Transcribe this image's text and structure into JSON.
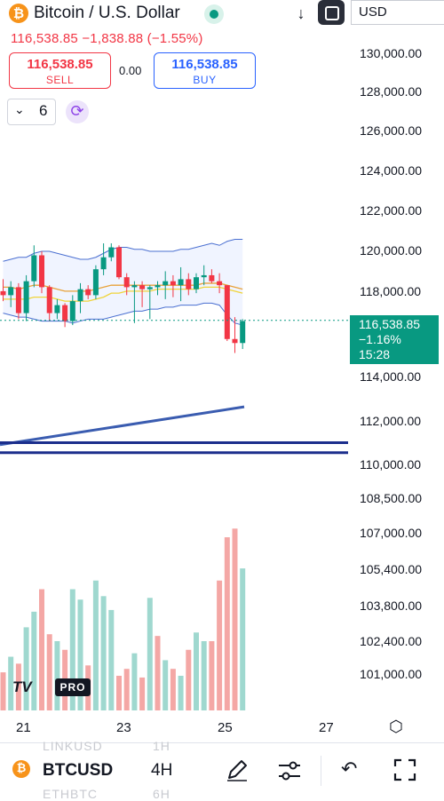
{
  "header": {
    "coin_glyph": "₿",
    "title": "Bitcoin / U.S. Dollar",
    "currency": "USD",
    "price_change_line": "116,538.85 −1,838.88 (−1.55%)"
  },
  "trade": {
    "sell_price": "116,538.85",
    "sell_label": "SELL",
    "spread": "0.00",
    "buy_price": "116,538.85",
    "buy_label": "BUY"
  },
  "indicators": {
    "chevron": "⌄",
    "count": "6"
  },
  "price_axis": {
    "ticks": [
      "130,000.00",
      "128,000.00",
      "126,000.00",
      "124,000.00",
      "122,000.00",
      "120,000.00",
      "118,000.00",
      "114,000.00",
      "112,000.00",
      "110,000.00",
      "108,500.00",
      "107,000.00",
      "105,400.00",
      "103,800.00",
      "102,400.00",
      "101,000.00"
    ]
  },
  "last_price_tag": {
    "price": "116,538.85",
    "change": "−1.16%",
    "countdown": "15:28"
  },
  "time_axis": {
    "ticks": [
      "21",
      "23",
      "25",
      "27"
    ]
  },
  "logo": {
    "tv": "TV",
    "pro": "PRO"
  },
  "bottom_bar": {
    "symbol": "BTCUSD",
    "timeframe": "4H",
    "ghost_symbol_above": "LINKUSD",
    "ghost_tf_above": "1H",
    "ghost_symbol_below": "ETHBTC",
    "ghost_tf_below": "6H"
  },
  "icons": {
    "down": "↓",
    "undo": "↶",
    "settings": "⬡"
  },
  "colors": {
    "up": "#089981",
    "down": "#f23645",
    "up_volume": "#9fd8cf",
    "down_volume": "#f4a7a5",
    "trendline": "#3a5cb0",
    "horizontal_lines": "#1b2e8c",
    "bollinger": "#2962ff"
  },
  "chart_data": {
    "type": "candlestick",
    "candles": [
      {
        "o": 118000,
        "h": 118600,
        "l": 117500,
        "c": 117800
      },
      {
        "o": 117800,
        "h": 118500,
        "l": 117200,
        "c": 118200
      },
      {
        "o": 118200,
        "h": 118400,
        "l": 116600,
        "c": 116900
      },
      {
        "o": 116900,
        "h": 118800,
        "l": 116500,
        "c": 118500
      },
      {
        "o": 118500,
        "h": 120300,
        "l": 118200,
        "c": 119800
      },
      {
        "o": 119800,
        "h": 120000,
        "l": 117900,
        "c": 118200
      },
      {
        "o": 118200,
        "h": 118300,
        "l": 116500,
        "c": 116900
      },
      {
        "o": 116900,
        "h": 117600,
        "l": 116600,
        "c": 117300
      },
      {
        "o": 117300,
        "h": 117400,
        "l": 116200,
        "c": 116500
      },
      {
        "o": 116500,
        "h": 117800,
        "l": 116300,
        "c": 117500
      },
      {
        "o": 117500,
        "h": 118400,
        "l": 116900,
        "c": 118100
      },
      {
        "o": 118100,
        "h": 118300,
        "l": 117600,
        "c": 117800
      },
      {
        "o": 117800,
        "h": 119300,
        "l": 117600,
        "c": 119100
      },
      {
        "o": 119100,
        "h": 120400,
        "l": 118800,
        "c": 119700
      },
      {
        "o": 119700,
        "h": 120400,
        "l": 119500,
        "c": 120200
      },
      {
        "o": 120200,
        "h": 120300,
        "l": 118600,
        "c": 118700
      },
      {
        "o": 118700,
        "h": 118900,
        "l": 117800,
        "c": 118200
      },
      {
        "o": 118200,
        "h": 118500,
        "l": 116400,
        "c": 118300
      },
      {
        "o": 118300,
        "h": 118500,
        "l": 117200,
        "c": 118100
      },
      {
        "o": 118100,
        "h": 118300,
        "l": 116600,
        "c": 118200
      },
      {
        "o": 118200,
        "h": 118500,
        "l": 117800,
        "c": 118300
      },
      {
        "o": 118300,
        "h": 119000,
        "l": 117600,
        "c": 118500
      },
      {
        "o": 118500,
        "h": 118800,
        "l": 117700,
        "c": 118300
      },
      {
        "o": 118300,
        "h": 119200,
        "l": 117500,
        "c": 118600
      },
      {
        "o": 118600,
        "h": 118900,
        "l": 117800,
        "c": 118100
      },
      {
        "o": 118100,
        "h": 118900,
        "l": 117900,
        "c": 118700
      },
      {
        "o": 118700,
        "h": 119300,
        "l": 118300,
        "c": 118800
      },
      {
        "o": 118800,
        "h": 119100,
        "l": 118400,
        "c": 118500
      },
      {
        "o": 118500,
        "h": 118900,
        "l": 117900,
        "c": 118300
      },
      {
        "o": 118300,
        "h": 118300,
        "l": 115500,
        "c": 115600
      },
      {
        "o": 115600,
        "h": 116700,
        "l": 114900,
        "c": 115400
      },
      {
        "o": 115400,
        "h": 116600,
        "l": 115100,
        "c": 116500
      }
    ],
    "volume_relative": [
      0.22,
      0.31,
      0.27,
      0.48,
      0.57,
      0.7,
      0.44,
      0.4,
      0.35,
      0.7,
      0.64,
      0.26,
      0.75,
      0.66,
      0.58,
      0.2,
      0.24,
      0.33,
      0.19,
      0.65,
      0.43,
      0.29,
      0.24,
      0.2,
      0.35,
      0.45,
      0.4,
      0.4,
      0.75,
      1.0,
      1.05,
      0.82
    ],
    "volume_up": [
      false,
      true,
      false,
      true,
      true,
      false,
      false,
      true,
      false,
      true,
      true,
      false,
      true,
      true,
      true,
      false,
      false,
      true,
      false,
      true,
      false,
      true,
      false,
      true,
      false,
      true,
      true,
      false,
      false,
      false,
      false,
      true
    ],
    "bollinger_upper": [
      119500,
      119600,
      119700,
      119700,
      119900,
      120000,
      120000,
      119900,
      119800,
      119700,
      119600,
      119600,
      119700,
      119900,
      120100,
      120200,
      120200,
      120100,
      120100,
      120000,
      120000,
      120000,
      120000,
      120100,
      120100,
      120200,
      120300,
      120400,
      120300,
      120500,
      120600,
      120600
    ],
    "bollinger_lower": [
      116900,
      116800,
      116700,
      116700,
      116600,
      116500,
      116500,
      116500,
      116500,
      116400,
      116500,
      116600,
      116600,
      116600,
      116700,
      116800,
      116900,
      117000,
      117000,
      117100,
      117100,
      117200,
      117200,
      117300,
      117300,
      117300,
      117400,
      117400,
      117300,
      116800,
      116400,
      116300
    ],
    "ma_orange": [
      118200,
      118200,
      118100,
      118200,
      118300,
      118300,
      118200,
      118100,
      118000,
      118000,
      118000,
      118000,
      118100,
      118200,
      118300,
      118300,
      118300,
      118300,
      118300,
      118300,
      118300,
      118300,
      118300,
      118300,
      118300,
      118300,
      118400,
      118400,
      118400,
      118300,
      118200,
      118100
    ],
    "ma_yellow": [
      117600,
      117600,
      117600,
      117600,
      117700,
      117700,
      117700,
      117600,
      117500,
      117500,
      117500,
      117500,
      117600,
      117700,
      117900,
      117900,
      118000,
      118000,
      118000,
      118000,
      118100,
      118100,
      118100,
      118100,
      118100,
      118100,
      118200,
      118200,
      118200,
      118100,
      118000,
      117900
    ],
    "trendline": {
      "from": 110300,
      "to": 112200
    },
    "horizontal_levels": [
      110400,
      109900
    ],
    "last_price": 116538.85
  }
}
